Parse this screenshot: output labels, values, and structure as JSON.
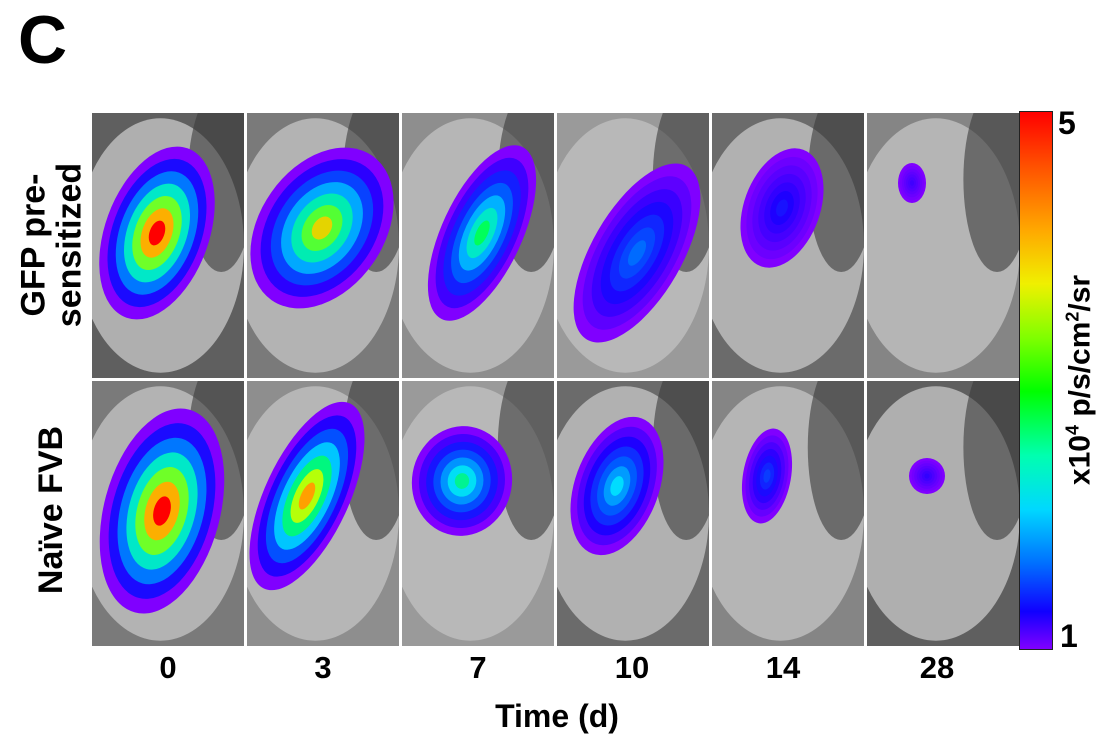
{
  "panel_letter": "C",
  "rows": [
    {
      "label_line1": "GFP pre-",
      "label_line2": "sensitized",
      "intensities": [
        1.0,
        0.78,
        0.6,
        0.32,
        0.18,
        0.1
      ]
    },
    {
      "label_line1": "Naïve FVB",
      "label_line2": "",
      "intensities": [
        1.0,
        0.85,
        0.55,
        0.45,
        0.25,
        0.12
      ]
    }
  ],
  "columns": [
    "0",
    "3",
    "7",
    "10",
    "14",
    "28"
  ],
  "x_axis_title": "Time (d)",
  "colorbar": {
    "max_label": "5",
    "min_label": "1",
    "label_prefix": "x10",
    "label_exp": "4",
    "label_mid": " p/s/cm",
    "label_exp2": "2",
    "label_suffix": "/sr"
  }
}
